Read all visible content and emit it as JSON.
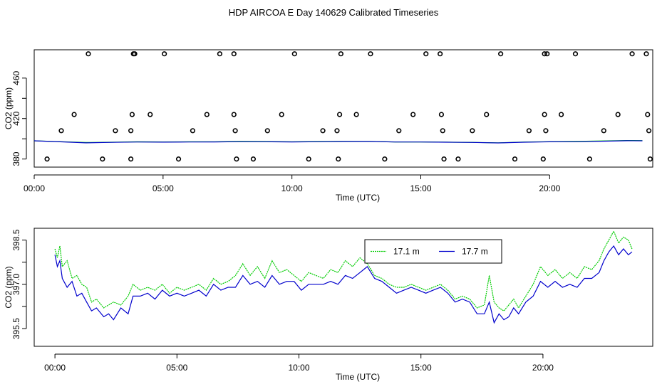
{
  "title": "HDP AIRCOA E  Day 140629  Calibrated Timeseries",
  "colors": {
    "series_17_1": "#00cc00",
    "series_17_7": "#0000cc",
    "axes": "#000000"
  },
  "chart_data": [
    {
      "type": "scatter",
      "title": "",
      "xlabel": "Time (UTC)",
      "ylabel": "CO2 (ppm)",
      "xlim": [
        0,
        24
      ],
      "ylim": [
        372,
        488
      ],
      "x_ticks": [
        "00:00",
        "05:00",
        "10:00",
        "15:00",
        "20:00"
      ],
      "y_ticks": [
        "380",
        "420",
        "460"
      ],
      "y_tick_values": [
        380,
        420,
        460
      ],
      "y_minor_ticks": [
        400,
        440
      ],
      "grid": false,
      "points": {
        "x": [
          0.5,
          1.05,
          1.55,
          2.1,
          2.65,
          3.15,
          3.75,
          3.75,
          3.8,
          3.85,
          3.9,
          4.5,
          5.05,
          5.6,
          6.15,
          6.7,
          7.2,
          7.75,
          7.75,
          7.8,
          7.85,
          8.5,
          9.05,
          9.6,
          10.1,
          10.65,
          11.2,
          11.75,
          11.8,
          11.85,
          11.9,
          12.5,
          13.05,
          13.6,
          14.15,
          14.7,
          15.2,
          15.75,
          15.8,
          15.85,
          15.9,
          16.45,
          17.0,
          17.55,
          18.1,
          18.65,
          19.2,
          19.75,
          19.8,
          19.8,
          19.85,
          19.9,
          20.45,
          21.0,
          21.55,
          22.1,
          22.65,
          23.2,
          23.75,
          23.8,
          23.85,
          23.9
        ],
        "y": [
          380,
          408,
          424,
          484,
          380,
          408,
          380,
          408,
          424,
          484,
          484,
          424,
          484,
          380,
          408,
          424,
          484,
          484,
          424,
          408,
          380,
          380,
          408,
          424,
          484,
          380,
          408,
          408,
          380,
          424,
          484,
          424,
          484,
          380,
          408,
          424,
          484,
          484,
          424,
          408,
          380,
          380,
          408,
          424,
          484,
          380,
          408,
          380,
          484,
          424,
          408,
          484,
          424,
          484,
          380,
          408,
          424,
          484,
          484,
          424,
          408,
          380
        ]
      },
      "series": [
        {
          "x": [
            0,
            1,
            2,
            3,
            4,
            5,
            6,
            7,
            8,
            9,
            10,
            11,
            12,
            13,
            14,
            15,
            16,
            17,
            18,
            19,
            20,
            21,
            22,
            23,
            23.6
          ],
          "values": [
            398.0,
            397.2,
            396.3,
            396.6,
            397.0,
            396.9,
            397.0,
            397.1,
            397.5,
            397.3,
            397.0,
            397.3,
            397.6,
            397.5,
            396.9,
            396.9,
            396.7,
            396.5,
            396.0,
            396.8,
            397.2,
            397.4,
            397.9,
            398.3,
            398.2
          ],
          "color": "#00cc00"
        },
        {
          "x": [
            0,
            1,
            2,
            3,
            4,
            5,
            6,
            7,
            8,
            9,
            10,
            11,
            12,
            13,
            14,
            15,
            16,
            17,
            18,
            19,
            20,
            21,
            22,
            23,
            23.6
          ],
          "values": [
            398.0,
            397.0,
            396.0,
            396.5,
            396.8,
            396.7,
            396.8,
            396.9,
            397.2,
            397.1,
            396.9,
            397.1,
            397.4,
            397.4,
            396.8,
            396.8,
            396.6,
            396.4,
            395.9,
            396.6,
            397.0,
            397.1,
            397.6,
            398.1,
            398.0
          ],
          "color": "#0000cc"
        }
      ]
    },
    {
      "type": "line",
      "title": "",
      "xlabel": "Time (UTC)",
      "ylabel": "CO2 (ppm)",
      "xlim": [
        -0.85,
        24.5
      ],
      "ylim": [
        394.9,
        398.9
      ],
      "x_ticks": [
        "00:00",
        "05:00",
        "10:00",
        "15:00",
        "20:00"
      ],
      "y_ticks": [
        "395.5",
        "397.0",
        "398.5"
      ],
      "y_tick_values": [
        395.5,
        397.0,
        398.5
      ],
      "y_minor_ticks": [
        396.25,
        397.75
      ],
      "grid": false,
      "legend": {
        "position": "top-right-center",
        "entries": [
          "17.1 m",
          "17.7 m"
        ]
      },
      "series": [
        {
          "name": "17.1 m",
          "color": "#00cc00",
          "x": [
            0.0,
            0.1,
            0.2,
            0.3,
            0.5,
            0.7,
            0.9,
            1.1,
            1.3,
            1.5,
            1.7,
            2.0,
            2.2,
            2.4,
            2.7,
            3.0,
            3.2,
            3.5,
            3.8,
            4.1,
            4.4,
            4.7,
            5.0,
            5.3,
            5.6,
            5.9,
            6.2,
            6.5,
            6.8,
            7.1,
            7.4,
            7.7,
            8.0,
            8.3,
            8.6,
            8.9,
            9.2,
            9.5,
            9.8,
            10.1,
            10.4,
            10.7,
            11.0,
            11.3,
            11.6,
            11.9,
            12.2,
            12.5,
            12.8,
            13.1,
            13.4,
            13.7,
            14.0,
            14.3,
            14.6,
            14.9,
            15.2,
            15.5,
            15.8,
            16.1,
            16.4,
            16.7,
            17.0,
            17.3,
            17.6,
            17.8,
            18.0,
            18.2,
            18.4,
            18.6,
            18.8,
            19.0,
            19.3,
            19.6,
            19.9,
            20.2,
            20.5,
            20.8,
            21.1,
            21.4,
            21.7,
            22.0,
            22.3,
            22.5,
            22.7,
            22.9,
            23.1,
            23.3,
            23.5,
            23.65
          ],
          "values": [
            398.2,
            397.9,
            398.3,
            397.6,
            397.8,
            397.2,
            397.3,
            397.0,
            396.9,
            396.4,
            396.5,
            396.2,
            396.3,
            396.4,
            396.3,
            396.6,
            397.0,
            396.8,
            396.9,
            396.8,
            397.0,
            396.7,
            396.9,
            396.8,
            396.9,
            397.0,
            396.8,
            397.2,
            397.0,
            397.1,
            397.3,
            397.7,
            397.3,
            397.6,
            397.2,
            397.8,
            397.4,
            397.5,
            397.3,
            397.1,
            397.4,
            397.3,
            397.2,
            397.5,
            397.4,
            397.8,
            397.6,
            397.9,
            397.7,
            397.3,
            397.2,
            397.0,
            396.9,
            396.9,
            397.0,
            396.9,
            396.8,
            396.9,
            397.0,
            396.8,
            396.5,
            396.6,
            396.5,
            396.2,
            396.3,
            397.3,
            396.4,
            396.2,
            396.1,
            396.3,
            396.5,
            396.2,
            396.6,
            397.0,
            397.6,
            397.3,
            397.5,
            397.2,
            397.4,
            397.2,
            397.6,
            397.5,
            397.8,
            398.2,
            398.5,
            398.8,
            398.4,
            398.6,
            398.5,
            398.2
          ]
        },
        {
          "name": "17.7 m",
          "color": "#0000cc",
          "x": [
            0.0,
            0.1,
            0.2,
            0.3,
            0.5,
            0.7,
            0.9,
            1.1,
            1.3,
            1.5,
            1.7,
            2.0,
            2.2,
            2.4,
            2.7,
            3.0,
            3.2,
            3.5,
            3.8,
            4.1,
            4.4,
            4.7,
            5.0,
            5.3,
            5.6,
            5.9,
            6.2,
            6.5,
            6.8,
            7.1,
            7.4,
            7.7,
            8.0,
            8.3,
            8.6,
            8.9,
            9.2,
            9.5,
            9.8,
            10.1,
            10.4,
            10.7,
            11.0,
            11.3,
            11.6,
            11.9,
            12.2,
            12.5,
            12.8,
            13.1,
            13.4,
            13.7,
            14.0,
            14.3,
            14.6,
            14.9,
            15.2,
            15.5,
            15.8,
            16.1,
            16.4,
            16.7,
            17.0,
            17.3,
            17.6,
            17.8,
            18.0,
            18.2,
            18.4,
            18.6,
            18.8,
            19.0,
            19.3,
            19.6,
            19.9,
            20.2,
            20.5,
            20.8,
            21.1,
            21.4,
            21.7,
            22.0,
            22.3,
            22.5,
            22.7,
            22.9,
            23.1,
            23.3,
            23.5,
            23.65
          ],
          "values": [
            398.0,
            397.6,
            397.8,
            397.2,
            396.9,
            397.1,
            396.6,
            396.7,
            396.4,
            396.1,
            396.2,
            395.9,
            396.0,
            395.8,
            396.2,
            396.0,
            396.6,
            396.6,
            396.7,
            396.5,
            396.8,
            396.6,
            396.7,
            396.6,
            396.7,
            396.8,
            396.6,
            397.0,
            396.8,
            396.9,
            396.9,
            397.3,
            397.0,
            397.1,
            396.9,
            397.3,
            397.0,
            397.1,
            397.1,
            396.8,
            397.0,
            397.0,
            397.0,
            397.1,
            397.0,
            397.3,
            397.2,
            397.4,
            397.6,
            397.2,
            397.1,
            396.9,
            396.7,
            396.8,
            396.9,
            396.8,
            396.7,
            396.8,
            396.9,
            396.7,
            396.4,
            396.5,
            396.4,
            396.0,
            396.0,
            396.4,
            395.7,
            396.0,
            395.8,
            395.9,
            396.2,
            396.0,
            396.4,
            396.6,
            397.1,
            396.9,
            397.1,
            396.9,
            397.0,
            396.9,
            397.2,
            397.2,
            397.4,
            397.8,
            398.1,
            398.3,
            398.0,
            398.2,
            398.0,
            398.1
          ]
        }
      ]
    }
  ]
}
